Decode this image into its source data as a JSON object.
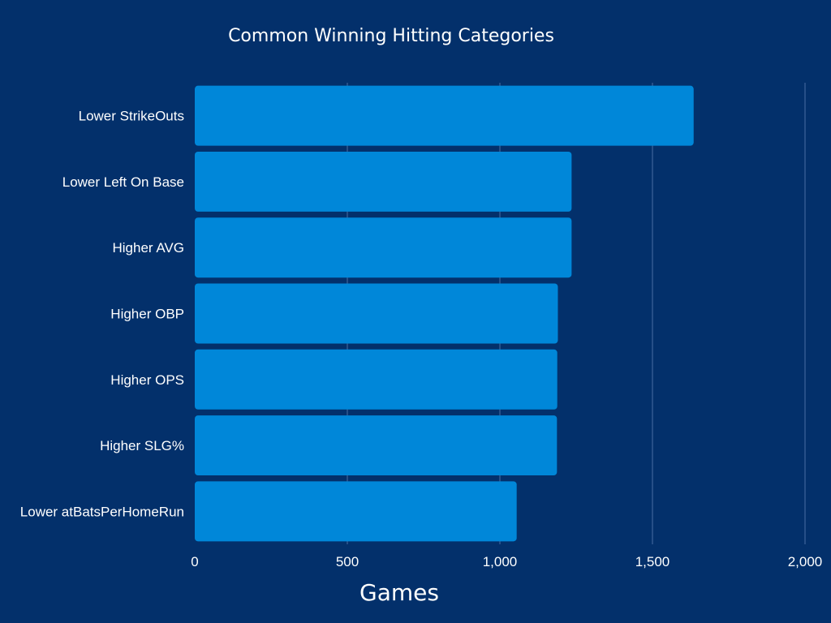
{
  "chart_data": {
    "type": "bar",
    "orientation": "horizontal",
    "title": "Common Winning Hitting Categories",
    "xlabel": "Games",
    "ylabel": "",
    "categories": [
      "Lower StrikeOuts",
      "Lower Left On Base",
      "Higher AVG",
      "Higher OBP",
      "Higher OPS",
      "Higher SLG%",
      "Lower atBatsPerHomeRun"
    ],
    "values": [
      1635,
      1235,
      1235,
      1190,
      1188,
      1187,
      1055
    ],
    "xlim": [
      0,
      2000
    ],
    "xticks": [
      0,
      500,
      1000,
      1500,
      2000
    ],
    "xtick_labels": [
      "0",
      "500",
      "1,000",
      "1,500",
      "2,000"
    ],
    "grid": true,
    "legend": "none"
  },
  "colors": {
    "background": "#03306b",
    "bar": "#0087d9",
    "gridline": "#4a6ea3",
    "text": "#ffffff"
  }
}
